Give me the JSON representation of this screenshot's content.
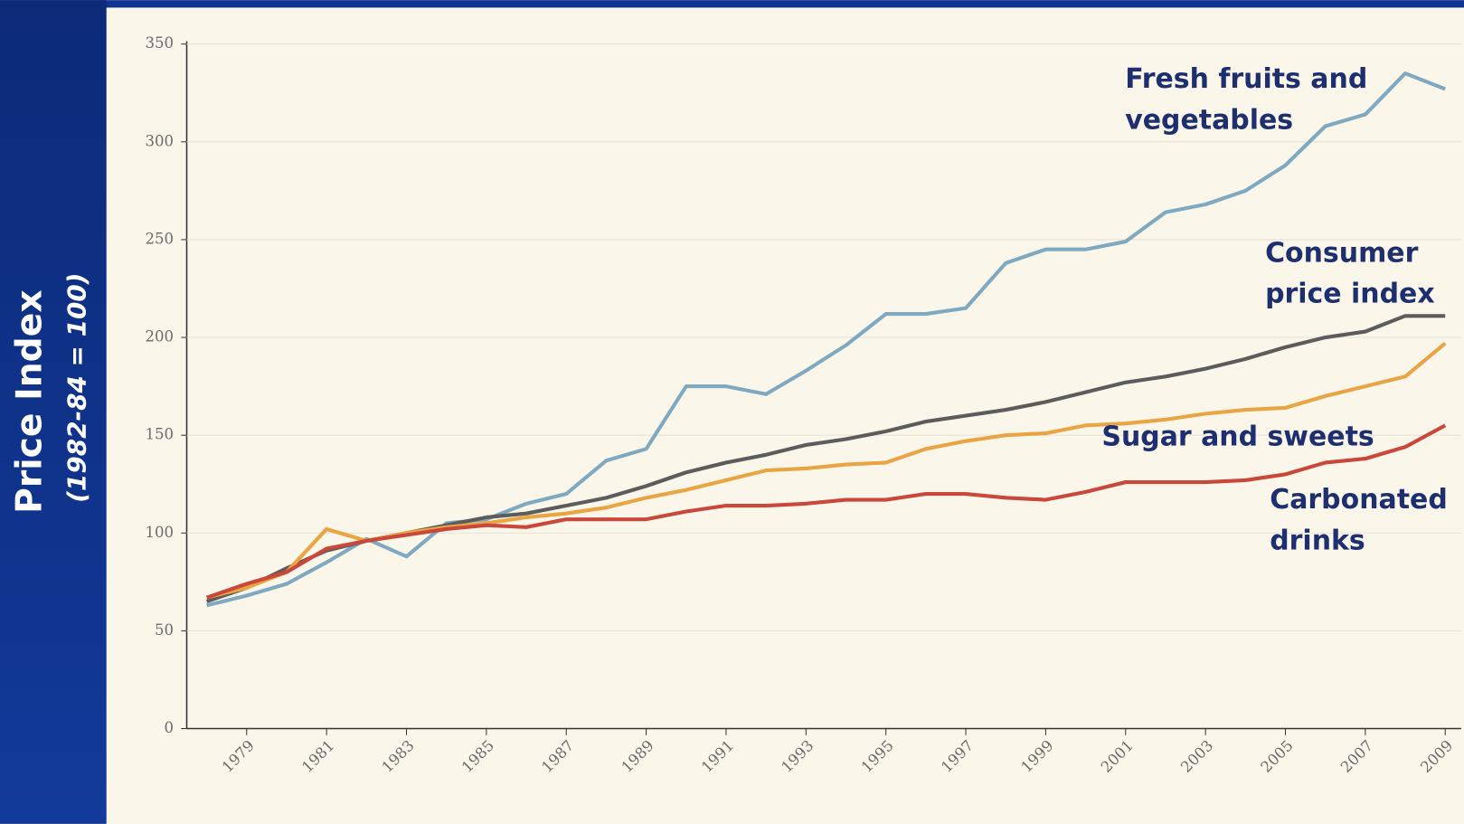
{
  "chart_data": {
    "type": "line",
    "ylabel": "Price Index",
    "ylabel_note": "(1982-84 = 100)",
    "x": [
      1978,
      1979,
      1980,
      1981,
      1982,
      1983,
      1984,
      1985,
      1986,
      1987,
      1988,
      1989,
      1990,
      1991,
      1992,
      1993,
      1994,
      1995,
      1996,
      1997,
      1998,
      1999,
      2000,
      2001,
      2002,
      2003,
      2004,
      2005,
      2006,
      2007,
      2008,
      2009
    ],
    "series": [
      {
        "name": "Fresh fruits and vegetables",
        "color": "#7fa9c0",
        "values": [
          63,
          68,
          74,
          85,
          97,
          88,
          105,
          107,
          115,
          120,
          137,
          143,
          175,
          175,
          171,
          183,
          196,
          212,
          212,
          215,
          238,
          245,
          245,
          249,
          264,
          268,
          275,
          288,
          308,
          314,
          335,
          327
        ]
      },
      {
        "name": "Consumer price index",
        "color": "#5c5c5c",
        "values": [
          65,
          72,
          82,
          91,
          96,
          100,
          104,
          108,
          110,
          114,
          118,
          124,
          131,
          136,
          140,
          145,
          148,
          152,
          157,
          160,
          163,
          167,
          172,
          177,
          180,
          184,
          189,
          195,
          200,
          203,
          211,
          211
        ]
      },
      {
        "name": "Sugar and sweets",
        "color": "#e9a444",
        "values": [
          67,
          72,
          80,
          102,
          96,
          100,
          103,
          105,
          108,
          110,
          113,
          118,
          122,
          127,
          132,
          133,
          135,
          136,
          143,
          147,
          150,
          151,
          155,
          156,
          158,
          161,
          163,
          164,
          170,
          175,
          180,
          197
        ]
      },
      {
        "name": "Carbonated drinks",
        "color": "#c9483b",
        "values": [
          67,
          74,
          80,
          92,
          96,
          99,
          102,
          104,
          103,
          107,
          107,
          107,
          111,
          114,
          114,
          115,
          117,
          117,
          120,
          120,
          118,
          117,
          121,
          126,
          126,
          126,
          127,
          130,
          136,
          138,
          144,
          155
        ]
      }
    ],
    "xlim": [
      1977.5,
      2009.4
    ],
    "xticks": [
      1979,
      1981,
      1983,
      1985,
      1987,
      1989,
      1991,
      1993,
      1995,
      1997,
      1999,
      2001,
      2003,
      2005,
      2007,
      2009
    ],
    "ylim": [
      0,
      350
    ],
    "yticks": [
      0,
      50,
      100,
      150,
      200,
      250,
      300,
      350
    ],
    "grid": true
  }
}
